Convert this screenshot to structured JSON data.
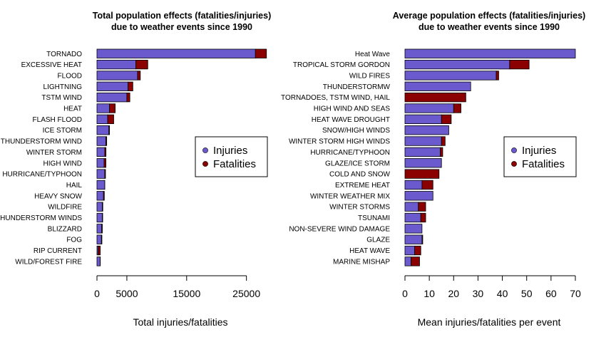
{
  "colors": {
    "injuries": "#6A5ACD",
    "fatalities": "#8B0000"
  },
  "chart_data": [
    {
      "type": "bar",
      "orientation": "horizontal",
      "stacked": true,
      "title_lines": [
        "Total population effects (fatalities/injuries)",
        "due to weather events since 1990"
      ],
      "xlabel": "Total injuries/fatalities",
      "xlim": [
        0,
        28500
      ],
      "xticks": [
        0,
        5000,
        15000,
        25000
      ],
      "categories": [
        "TORNADO",
        "EXCESSIVE HEAT",
        "FLOOD",
        "LIGHTNING",
        "TSTM WIND",
        "HEAT",
        "FLASH FLOOD",
        "ICE STORM",
        "THUNDERSTORM WIND",
        "WINTER STORM",
        "HIGH WIND",
        "HURRICANE/TYPHOON",
        "HAIL",
        "HEAVY SNOW",
        "WILDFIRE",
        "THUNDERSTORM WINDS",
        "BLIZZARD",
        "FOG",
        "RIP CURRENT",
        "WILD/FOREST FIRE"
      ],
      "series": [
        {
          "name": "Injuries",
          "values": [
            26500,
            6500,
            6800,
            5200,
            5000,
            2100,
            1800,
            2000,
            1500,
            1300,
            1200,
            1300,
            1300,
            1100,
            900,
            900,
            800,
            750,
            200,
            550
          ]
        },
        {
          "name": "Fatalities",
          "values": [
            1850,
            2000,
            450,
            800,
            500,
            950,
            1000,
            100,
            130,
            210,
            300,
            130,
            10,
            130,
            80,
            60,
            100,
            80,
            350,
            10
          ]
        }
      ],
      "legend": {
        "position": "right",
        "labels": [
          "Injuries",
          "Fatalities"
        ]
      }
    },
    {
      "type": "bar",
      "orientation": "horizontal",
      "stacked": true,
      "title_lines": [
        "Average population effects (fatalities/injuries)",
        "due to weather events since 1990"
      ],
      "xlabel": "Mean injuries/fatalities per event",
      "xlim": [
        0,
        70
      ],
      "xticks": [
        0,
        10,
        20,
        30,
        40,
        50,
        60,
        70
      ],
      "categories": [
        "Heat Wave",
        "TROPICAL STORM GORDON",
        "WILD FIRES",
        "THUNDERSTORMW",
        "TORNADOES, TSTM WIND, HAIL",
        "HIGH WIND AND SEAS",
        "HEAT WAVE DROUGHT",
        "SNOW/HIGH WINDS",
        "WINTER STORM HIGH WINDS",
        "HURRICANE/TYPHOON",
        "GLAZE/ICE STORM",
        "COLD AND SNOW",
        "EXTREME HEAT",
        "WINTER WEATHER MIX",
        "WINTER STORMS",
        "TSUNAMI",
        "NON-SEVERE WIND DAMAGE",
        "GLAZE",
        "HEAT WAVE",
        "MARINE MISHAP"
      ],
      "series": [
        {
          "name": "Injuries",
          "values": [
            70,
            43,
            37.5,
            27,
            0,
            20,
            15,
            18,
            15,
            14.5,
            15,
            0,
            7,
            11.5,
            5.5,
            6.5,
            7,
            7,
            4,
            2.5
          ]
        },
        {
          "name": "Fatalities",
          "values": [
            0,
            8,
            1,
            0,
            25,
            3,
            4,
            0,
            1.5,
            1,
            0,
            14,
            4.5,
            0,
            3,
            2,
            0,
            0.3,
            2.5,
            3.5
          ]
        }
      ],
      "legend": {
        "position": "right",
        "labels": [
          "Injuries",
          "Fatalities"
        ]
      }
    }
  ]
}
